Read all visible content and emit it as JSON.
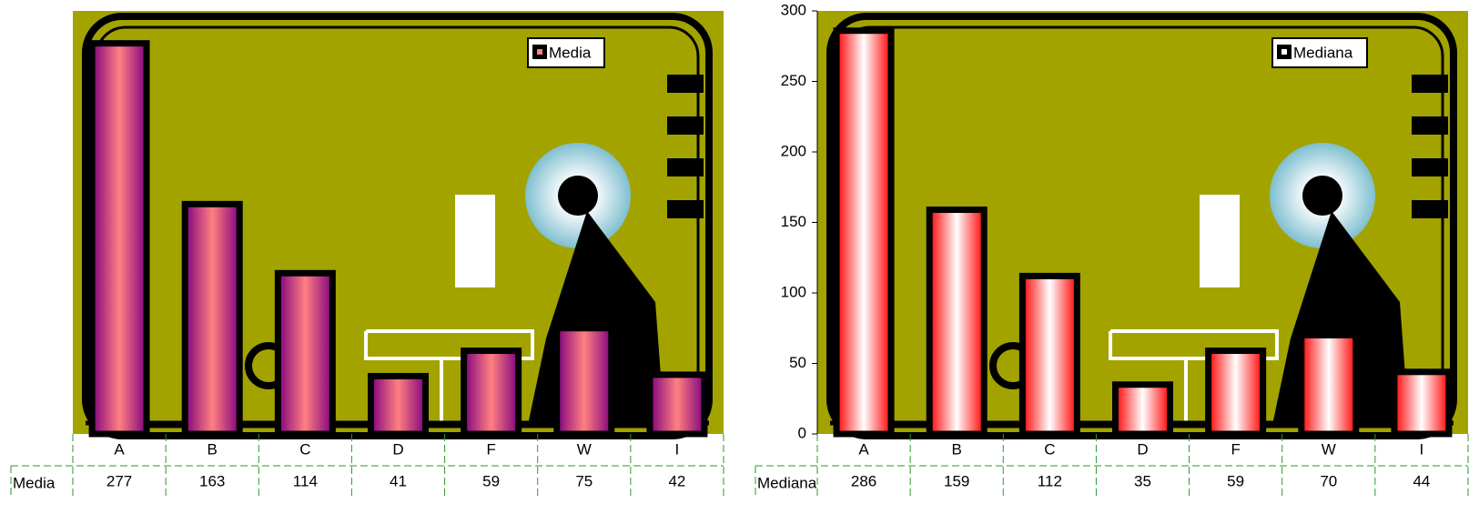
{
  "chart_data": [
    {
      "type": "bar",
      "categories": [
        "A",
        "B",
        "C",
        "D",
        "F",
        "W",
        "I"
      ],
      "series": [
        {
          "name": "Media",
          "color": "#800080",
          "values": [
            277,
            163,
            114,
            41,
            59,
            75,
            42
          ]
        }
      ],
      "ylim": [
        0,
        300
      ],
      "legend": "upper right",
      "data_table": true
    },
    {
      "type": "bar",
      "categories": [
        "A",
        "B",
        "C",
        "D",
        "F",
        "W",
        "I"
      ],
      "series": [
        {
          "name": "Mediana",
          "color": "#ff0000",
          "values": [
            286,
            159,
            112,
            35,
            59,
            70,
            44
          ]
        }
      ],
      "ylim": [
        0,
        300
      ],
      "yticks": [
        0,
        50,
        100,
        150,
        200,
        250,
        300
      ],
      "legend": "upper right",
      "data_table": true
    }
  ]
}
